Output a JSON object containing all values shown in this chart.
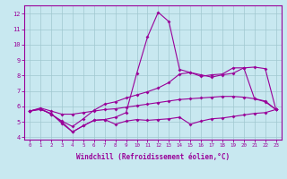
{
  "x": [
    0,
    1,
    2,
    3,
    4,
    5,
    6,
    7,
    8,
    9,
    10,
    11,
    12,
    13,
    14,
    15,
    16,
    17,
    18,
    19,
    20,
    21,
    22,
    23
  ],
  "line1": [
    5.7,
    5.9,
    5.7,
    5.5,
    5.5,
    5.6,
    5.7,
    5.8,
    5.85,
    5.95,
    6.05,
    6.15,
    6.25,
    6.35,
    6.45,
    6.5,
    6.55,
    6.6,
    6.65,
    6.65,
    6.6,
    6.5,
    6.3,
    5.8
  ],
  "line2": [
    5.7,
    5.8,
    5.55,
    4.9,
    4.35,
    4.75,
    5.1,
    5.15,
    4.85,
    5.05,
    5.15,
    5.1,
    5.15,
    5.2,
    5.3,
    4.85,
    5.05,
    5.2,
    5.25,
    5.35,
    5.45,
    5.55,
    5.6,
    5.8
  ],
  "line3": [
    5.7,
    5.85,
    5.5,
    5.05,
    4.7,
    5.2,
    5.75,
    6.15,
    6.3,
    6.55,
    6.75,
    6.95,
    7.2,
    7.55,
    8.1,
    8.2,
    8.05,
    7.9,
    8.05,
    8.15,
    8.5,
    8.55,
    8.45,
    5.8
  ],
  "line4": [
    5.7,
    5.85,
    5.5,
    5.0,
    4.35,
    4.75,
    5.1,
    5.15,
    5.3,
    5.6,
    8.15,
    10.5,
    12.1,
    11.5,
    8.4,
    8.2,
    7.95,
    8.05,
    8.1,
    8.5,
    8.5,
    6.5,
    6.35,
    5.8
  ],
  "line_color": "#990099",
  "bg_color": "#c8e8f0",
  "grid_color": "#a0c8d0",
  "xlabel": "Windchill (Refroidissement éolien,°C)",
  "xlim": [
    -0.5,
    23.5
  ],
  "ylim": [
    3.85,
    12.55
  ],
  "yticks": [
    4,
    5,
    6,
    7,
    8,
    9,
    10,
    11,
    12
  ],
  "xticks": [
    0,
    1,
    2,
    3,
    4,
    5,
    6,
    7,
    8,
    9,
    10,
    11,
    12,
    13,
    14,
    15,
    16,
    17,
    18,
    19,
    20,
    21,
    22,
    23
  ]
}
